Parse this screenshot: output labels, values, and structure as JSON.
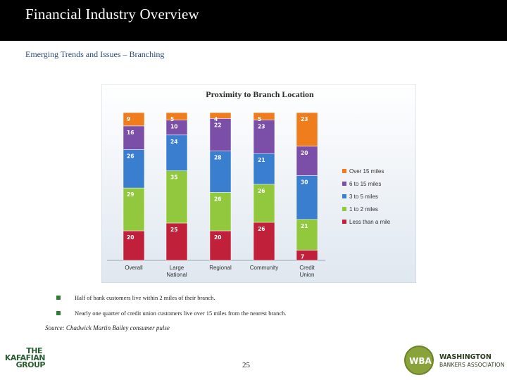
{
  "slide": {
    "title": "Financial Industry Overview",
    "subtitle": "Emerging Trends and Issues – Branching",
    "bullets": [
      "Half  of bank customers live within 2 miles of their branch.",
      "Nearly one quarter of credit union customers live over 15 miles from the nearest branch."
    ],
    "source": "Source:  Chadwick Martin Bailey consumer pulse",
    "page_number": "25"
  },
  "logos": {
    "left_line1": "THE",
    "left_line2": "KAFAFIAN",
    "left_line3": "GROUP",
    "right_badge": "WBA",
    "right_name1": "WASHINGTON",
    "right_name2": "BANKERS ASSOCIATION"
  },
  "chart_data": {
    "type": "bar",
    "stacked": true,
    "title": "Proximity to Branch Location",
    "categories": [
      "Overall",
      "Large National",
      "Regional",
      "Community",
      "Credit Union"
    ],
    "series": [
      {
        "name": "Less than a mile",
        "color": "#c0203a",
        "values": [
          20,
          25,
          20,
          26,
          7
        ]
      },
      {
        "name": "1 to 2 miles",
        "color": "#92c83e",
        "values": [
          29,
          35,
          26,
          26,
          21
        ]
      },
      {
        "name": "3 to 5 miles",
        "color": "#3a7ecf",
        "values": [
          26,
          24,
          28,
          21,
          30
        ]
      },
      {
        "name": "6 to 15 miles",
        "color": "#7b4fa8",
        "values": [
          16,
          10,
          22,
          23,
          20
        ]
      },
      {
        "name": "Over 15 miles",
        "color": "#ef7d1e",
        "values": [
          9,
          5,
          4,
          5,
          23
        ]
      }
    ],
    "ylim": [
      0,
      100
    ],
    "legend": "right",
    "colors": {
      "background": "#f3f6fa",
      "title": "#2b2b2b"
    }
  }
}
